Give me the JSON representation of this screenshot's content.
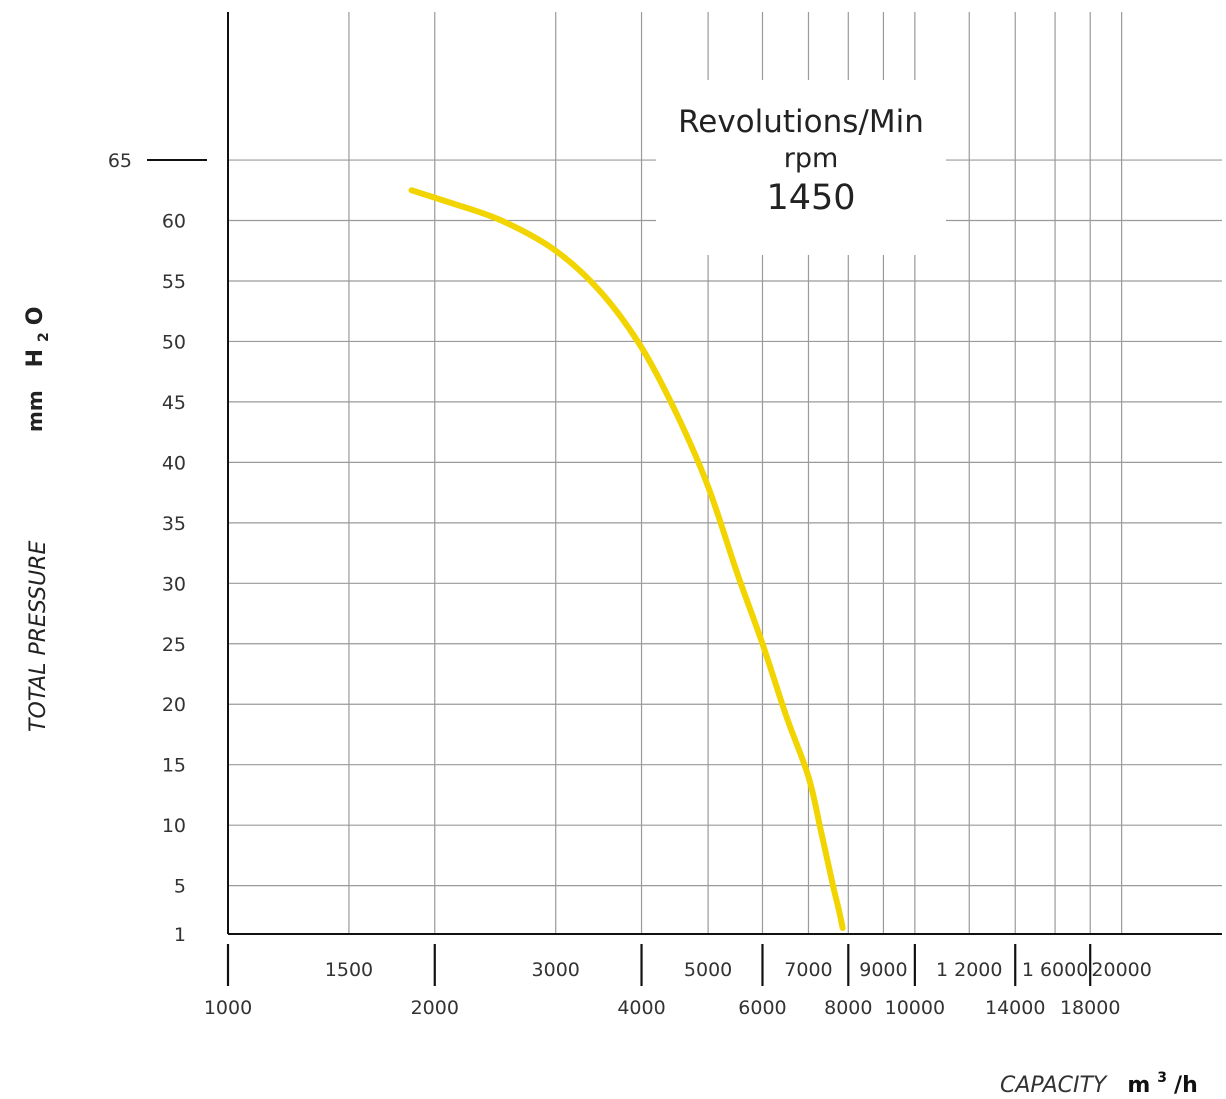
{
  "chart_data": {
    "type": "line",
    "y_axis_label": "TOTAL PRESSURE",
    "y_axis_unit_prefix": "mm",
    "y_axis_unit_main": "H",
    "y_axis_unit_sub": "2",
    "y_axis_unit_end": "O",
    "x_axis_label": "CAPACITY",
    "x_axis_unit_main": "m",
    "x_axis_unit_sup": "3",
    "x_axis_unit_end": "/h",
    "x_scale": "log",
    "x_range": [
      1000,
      28000
    ],
    "y_range": [
      1,
      70
    ],
    "y_ticks": [
      1,
      5,
      10,
      15,
      20,
      25,
      30,
      35,
      40,
      45,
      50,
      55,
      60,
      65
    ],
    "x_ticks_upper": [
      "1500",
      "3000",
      "5000",
      "7000",
      "9000",
      "1 2000",
      "1 6000",
      "20000"
    ],
    "x_ticks_lower": [
      "1000",
      "2000",
      "4000",
      "6000",
      "8000",
      "10000",
      "14000",
      "18000"
    ],
    "x_upper_values": [
      1500,
      3000,
      5000,
      7000,
      9000,
      12000,
      16000,
      20000
    ],
    "x_lower_values": [
      1000,
      2000,
      4000,
      6000,
      8000,
      10000,
      14000,
      18000
    ],
    "annotation": [
      "Revolutions/Min",
      "rpm",
      "1450"
    ],
    "grid": true,
    "series": [
      {
        "color": "#f2d400",
        "x": [
          1850,
          2100,
          2500,
          3000,
          3500,
          4000,
          4500,
          5000,
          5500,
          6000,
          6500,
          7000,
          7300,
          7600,
          7750,
          7850
        ],
        "y": [
          62.5,
          61.5,
          60,
          57.5,
          54,
          49.5,
          44,
          38,
          31,
          25,
          19,
          14,
          9.5,
          5,
          3,
          1.5
        ]
      }
    ]
  }
}
